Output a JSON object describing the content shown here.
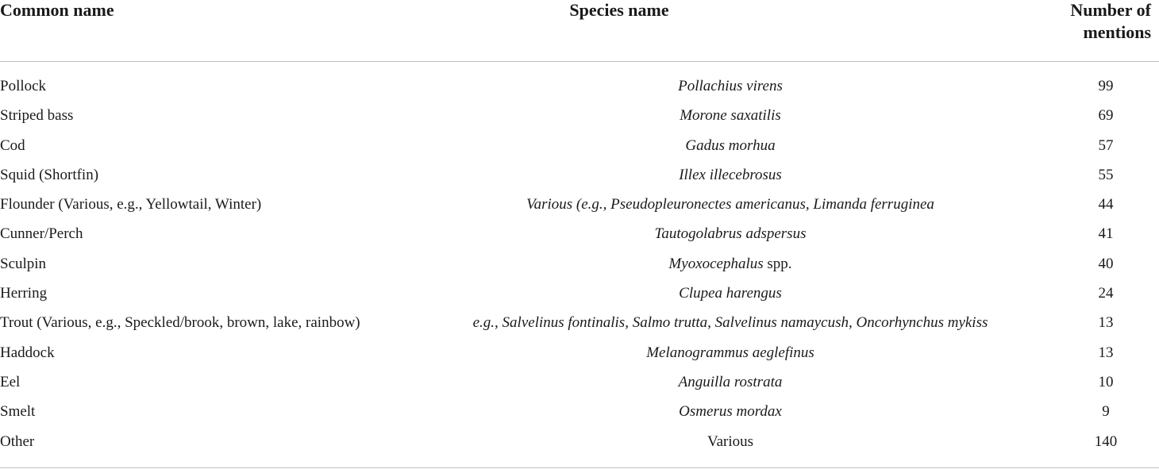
{
  "table": {
    "headers": {
      "common_name": "Common name",
      "species_name": "Species name",
      "mentions_line1": "Number of",
      "mentions_line2": "mentions"
    },
    "rows": [
      {
        "common": "Pollock",
        "species_italic": "Pollachius virens",
        "species_plain": "",
        "mentions": "99"
      },
      {
        "common": "Striped bass",
        "species_italic": "Morone saxatilis",
        "species_plain": "",
        "mentions": "69"
      },
      {
        "common": "Cod",
        "species_italic": "Gadus morhua",
        "species_plain": "",
        "mentions": "57"
      },
      {
        "common": "Squid (Shortfin)",
        "species_italic": "Illex illecebrosus",
        "species_plain": "",
        "mentions": "55"
      },
      {
        "common": "Flounder (Various, e.g., Yellowtail, Winter)",
        "species_italic": "Various (e.g., Pseudopleuronectes americanus, Limanda ferruginea",
        "species_plain": "",
        "mentions": "44"
      },
      {
        "common": "Cunner/Perch",
        "species_italic": "Tautogolabrus adspersus",
        "species_plain": "",
        "mentions": "41"
      },
      {
        "common": "Sculpin",
        "species_italic": "Myoxocephalus",
        "species_plain": " spp.",
        "mentions": "40"
      },
      {
        "common": "Herring",
        "species_italic": "Clupea harengus",
        "species_plain": "",
        "mentions": "24"
      },
      {
        "common": "Trout (Various, e.g., Speckled/brook, brown, lake, rainbow)",
        "species_italic": "e.g., Salvelinus fontinalis, Salmo trutta, Salvelinus namaycush, Oncorhynchus mykiss",
        "species_plain": "",
        "mentions": "13"
      },
      {
        "common": "Haddock",
        "species_italic": "Melanogrammus aeglefinus",
        "species_plain": "",
        "mentions": "13"
      },
      {
        "common": "Eel",
        "species_italic": "Anguilla rostrata",
        "species_plain": "",
        "mentions": "10"
      },
      {
        "common": "Smelt",
        "species_italic": "Osmerus mordax",
        "species_plain": "",
        "mentions": "9"
      },
      {
        "common": "Other",
        "species_italic": "",
        "species_plain": "Various",
        "mentions": "140"
      }
    ]
  }
}
